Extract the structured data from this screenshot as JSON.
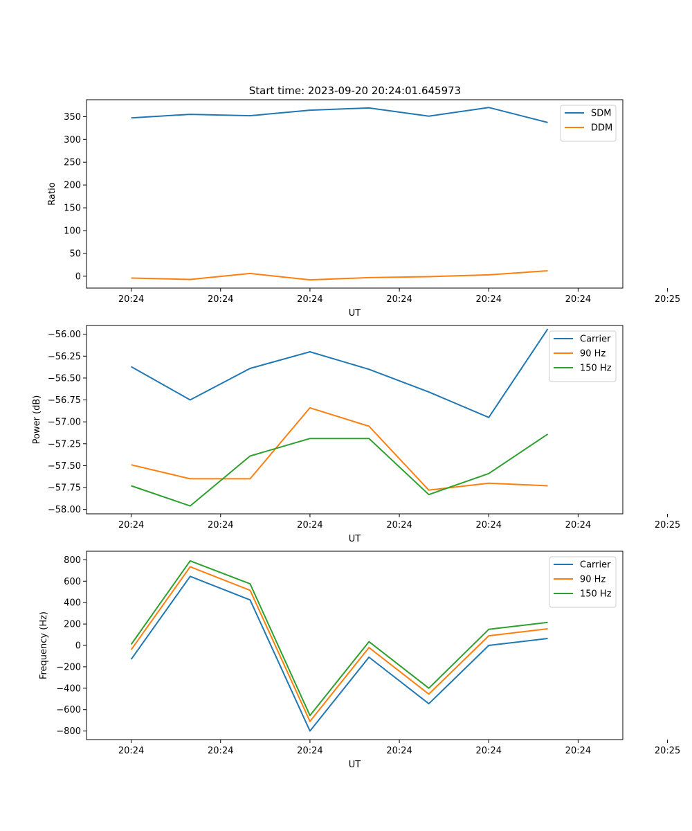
{
  "figure": {
    "title": "Start time: 2023-09-20 20:24:01.645973"
  },
  "chart_data": [
    {
      "type": "line",
      "title": "Start time: 2023-09-20 20:24:01.645973",
      "xlabel": "UT",
      "ylabel": "Ratio",
      "xlim": [
        -0.5,
        5.5
      ],
      "ylim": [
        -26,
        387
      ],
      "x_ticks": [
        0,
        1,
        2,
        3,
        4,
        5,
        6
      ],
      "x_tick_labels": [
        "20:24",
        "20:24",
        "20:24",
        "20:24",
        "20:24",
        "20:24",
        "20:25"
      ],
      "y_ticks": [
        0,
        50,
        100,
        150,
        200,
        250,
        300,
        350
      ],
      "y_tick_labels": [
        "0",
        "50",
        "100",
        "150",
        "200",
        "250",
        "300",
        "350"
      ],
      "legend_position": "upper right",
      "x": [
        0,
        0.66,
        1.33,
        2.0,
        2.66,
        3.33,
        4.0,
        4.66
      ],
      "series": [
        {
          "name": "SDM",
          "color": "#1f77b4",
          "values": [
            347,
            355,
            352,
            364,
            369,
            351,
            370,
            337
          ]
        },
        {
          "name": "DDM",
          "color": "#ff7f0e",
          "values": [
            -4,
            -7,
            6,
            -8,
            -3,
            -1,
            3,
            12
          ]
        }
      ]
    },
    {
      "type": "line",
      "title": "",
      "xlabel": "UT",
      "ylabel": "Power (dB)",
      "xlim": [
        -0.5,
        5.5
      ],
      "ylim": [
        -58.05,
        -55.9
      ],
      "x_ticks": [
        0,
        1,
        2,
        3,
        4,
        5,
        6
      ],
      "x_tick_labels": [
        "20:24",
        "20:24",
        "20:24",
        "20:24",
        "20:24",
        "20:24",
        "20:25"
      ],
      "y_ticks": [
        -58.0,
        -57.75,
        -57.5,
        -57.25,
        -57.0,
        -56.75,
        -56.5,
        -56.25,
        -56.0
      ],
      "y_tick_labels": [
        "−58.00",
        "−57.75",
        "−57.50",
        "−57.25",
        "−57.00",
        "−56.75",
        "−56.50",
        "−56.25",
        "−56.00"
      ],
      "legend_position": "upper right",
      "x": [
        0,
        0.66,
        1.33,
        2.0,
        2.66,
        3.33,
        4.0,
        4.66
      ],
      "series": [
        {
          "name": "Carrier",
          "color": "#1f77b4",
          "values": [
            -56.37,
            -56.75,
            -56.39,
            -56.2,
            -56.4,
            -56.66,
            -56.95,
            -55.94
          ]
        },
        {
          "name": "90 Hz",
          "color": "#ff7f0e",
          "values": [
            -57.49,
            -57.65,
            -57.65,
            -56.84,
            -57.05,
            -57.78,
            -57.7,
            -57.73
          ]
        },
        {
          "name": "150 Hz",
          "color": "#2ca02c",
          "values": [
            -57.73,
            -57.96,
            -57.39,
            -57.19,
            -57.19,
            -57.83,
            -57.59,
            -57.14
          ]
        }
      ]
    },
    {
      "type": "line",
      "title": "",
      "xlabel": "UT",
      "ylabel": "Frequency (Hz)",
      "xlim": [
        -0.5,
        5.5
      ],
      "ylim": [
        -880,
        880
      ],
      "x_ticks": [
        0,
        1,
        2,
        3,
        4,
        5,
        6
      ],
      "x_tick_labels": [
        "20:24",
        "20:24",
        "20:24",
        "20:24",
        "20:24",
        "20:24",
        "20:25"
      ],
      "y_ticks": [
        -800,
        -600,
        -400,
        -200,
        0,
        200,
        400,
        600,
        800
      ],
      "y_tick_labels": [
        "−800",
        "−600",
        "−400",
        "−200",
        "0",
        "200",
        "400",
        "600",
        "800"
      ],
      "legend_position": "upper right",
      "x": [
        0,
        0.66,
        1.33,
        2.0,
        2.66,
        3.33,
        4.0,
        4.66
      ],
      "series": [
        {
          "name": "Carrier",
          "color": "#1f77b4",
          "values": [
            -130,
            645,
            425,
            -800,
            -110,
            -545,
            0,
            65
          ]
        },
        {
          "name": "90 Hz",
          "color": "#ff7f0e",
          "values": [
            -40,
            735,
            515,
            -710,
            -20,
            -455,
            90,
            155
          ]
        },
        {
          "name": "150 Hz",
          "color": "#2ca02c",
          "values": [
            10,
            790,
            575,
            -655,
            35,
            -400,
            150,
            215
          ]
        }
      ]
    }
  ]
}
